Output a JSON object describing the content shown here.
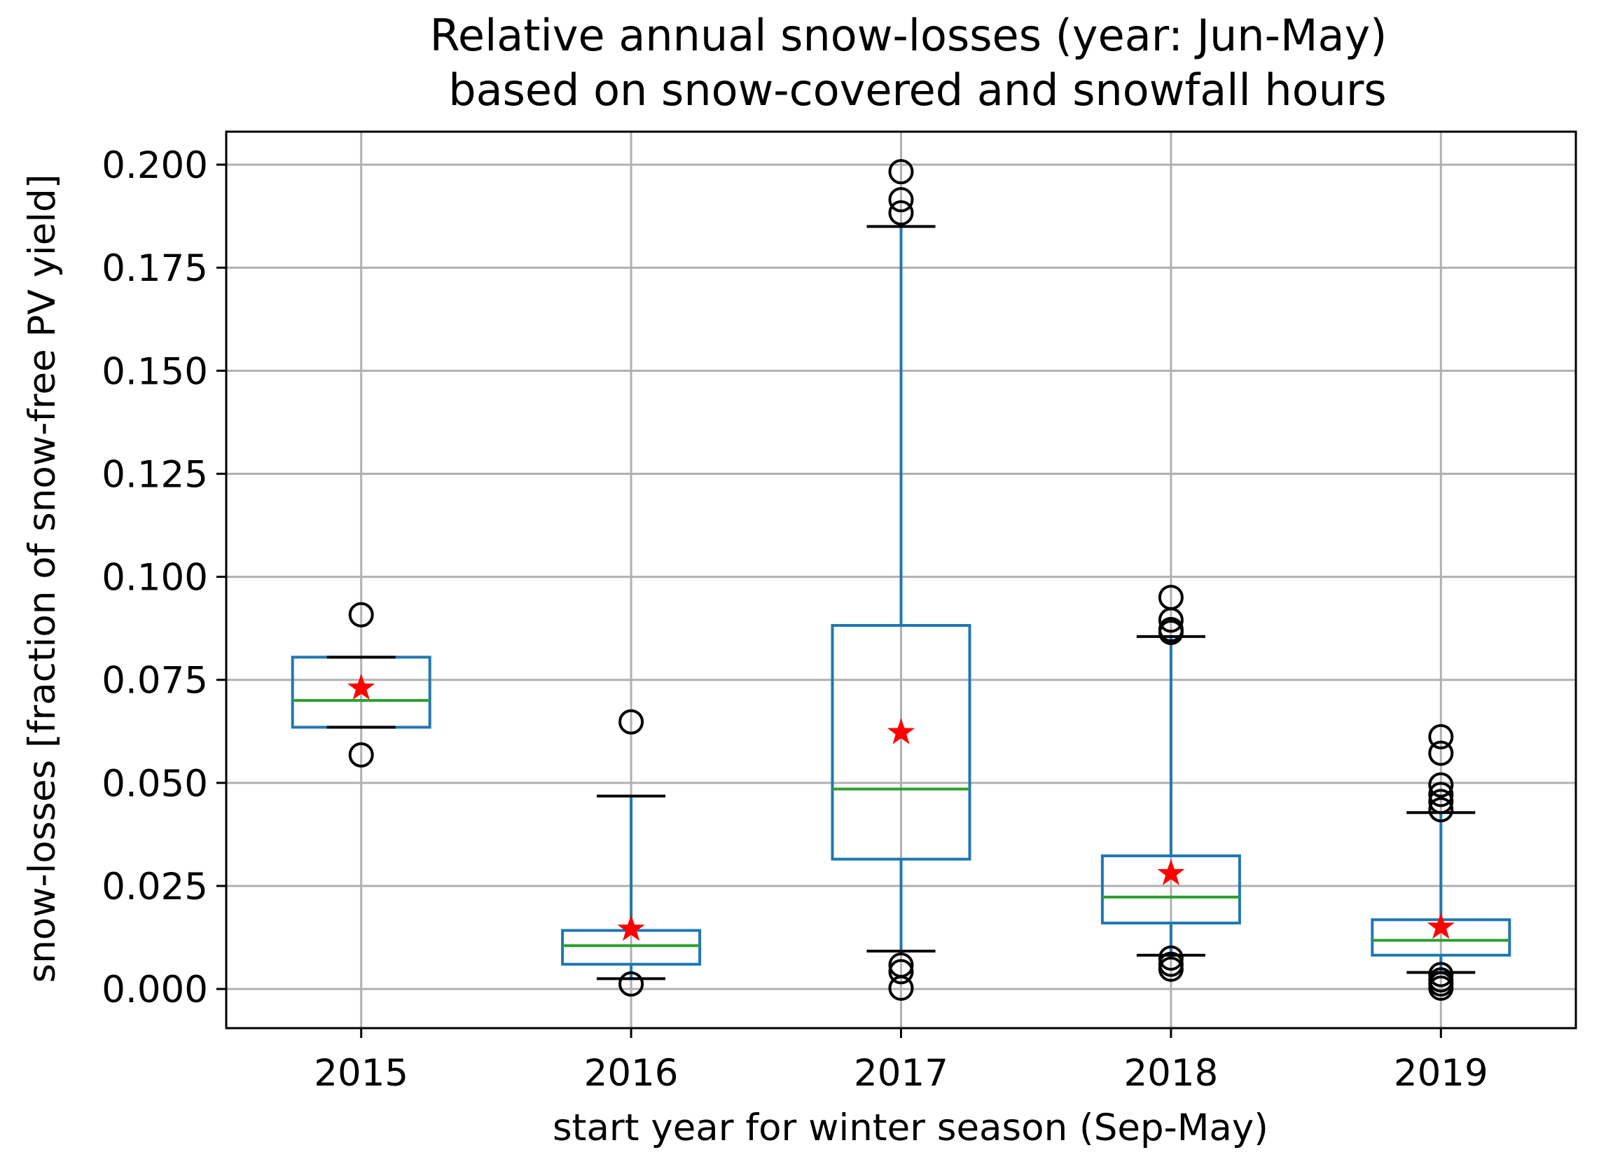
{
  "chart_data": {
    "type": "box",
    "title": "Relative annual snow-losses (year: Jun-May)",
    "subtitle": "based on snow-covered and snowfall hours",
    "xlabel": "start year for winter season (Sep-May)",
    "ylabel": "snow-losses [fraction of snow-free PV yield]",
    "ylim": [
      -0.0095,
      0.208
    ],
    "yticks": [
      0.0,
      0.025,
      0.05,
      0.075,
      0.1,
      0.125,
      0.15,
      0.175,
      0.2
    ],
    "ytick_labels": [
      "0.000",
      "0.025",
      "0.050",
      "0.075",
      "0.100",
      "0.125",
      "0.150",
      "0.175",
      "0.200"
    ],
    "grid": true,
    "categories": [
      "2015",
      "2016",
      "2017",
      "2018",
      "2019"
    ],
    "boxes": [
      {
        "category": "2015",
        "whisker_low": 0.0635,
        "q1": 0.0635,
        "median": 0.07,
        "q3": 0.0805,
        "whisker_high": 0.0805,
        "mean": 0.073,
        "outliers": [
          0.0908,
          0.0568
        ]
      },
      {
        "category": "2016",
        "whisker_low": 0.0025,
        "q1": 0.006,
        "median": 0.0105,
        "q3": 0.0142,
        "whisker_high": 0.0468,
        "mean": 0.0145,
        "outliers": [
          0.0648,
          0.0012
        ]
      },
      {
        "category": "2017",
        "whisker_low": 0.0092,
        "q1": 0.0315,
        "median": 0.0485,
        "q3": 0.0882,
        "whisker_high": 0.185,
        "mean": 0.0622,
        "outliers": [
          0.1983,
          0.1915,
          0.1883,
          0.0058,
          0.0042,
          0.0002
        ]
      },
      {
        "category": "2018",
        "whisker_low": 0.0082,
        "q1": 0.016,
        "median": 0.0223,
        "q3": 0.0323,
        "whisker_high": 0.0855,
        "mean": 0.028,
        "outliers": [
          0.095,
          0.0895,
          0.0872,
          0.0865,
          0.0075,
          0.006,
          0.0048
        ]
      },
      {
        "category": "2019",
        "whisker_low": 0.004,
        "q1": 0.0082,
        "median": 0.0118,
        "q3": 0.0168,
        "whisker_high": 0.0428,
        "mean": 0.015,
        "outliers": [
          0.0612,
          0.0572,
          0.0495,
          0.0472,
          0.0455,
          0.0435,
          0.0035,
          0.0022,
          0.0012,
          0.0002
        ]
      }
    ],
    "colors": {
      "box": "#1f77b4",
      "median": "#2ca02c",
      "mean": "#ff0000",
      "whisker_cap": "#000000",
      "outlier": "#000000",
      "grid": "#b0b0b0"
    }
  }
}
